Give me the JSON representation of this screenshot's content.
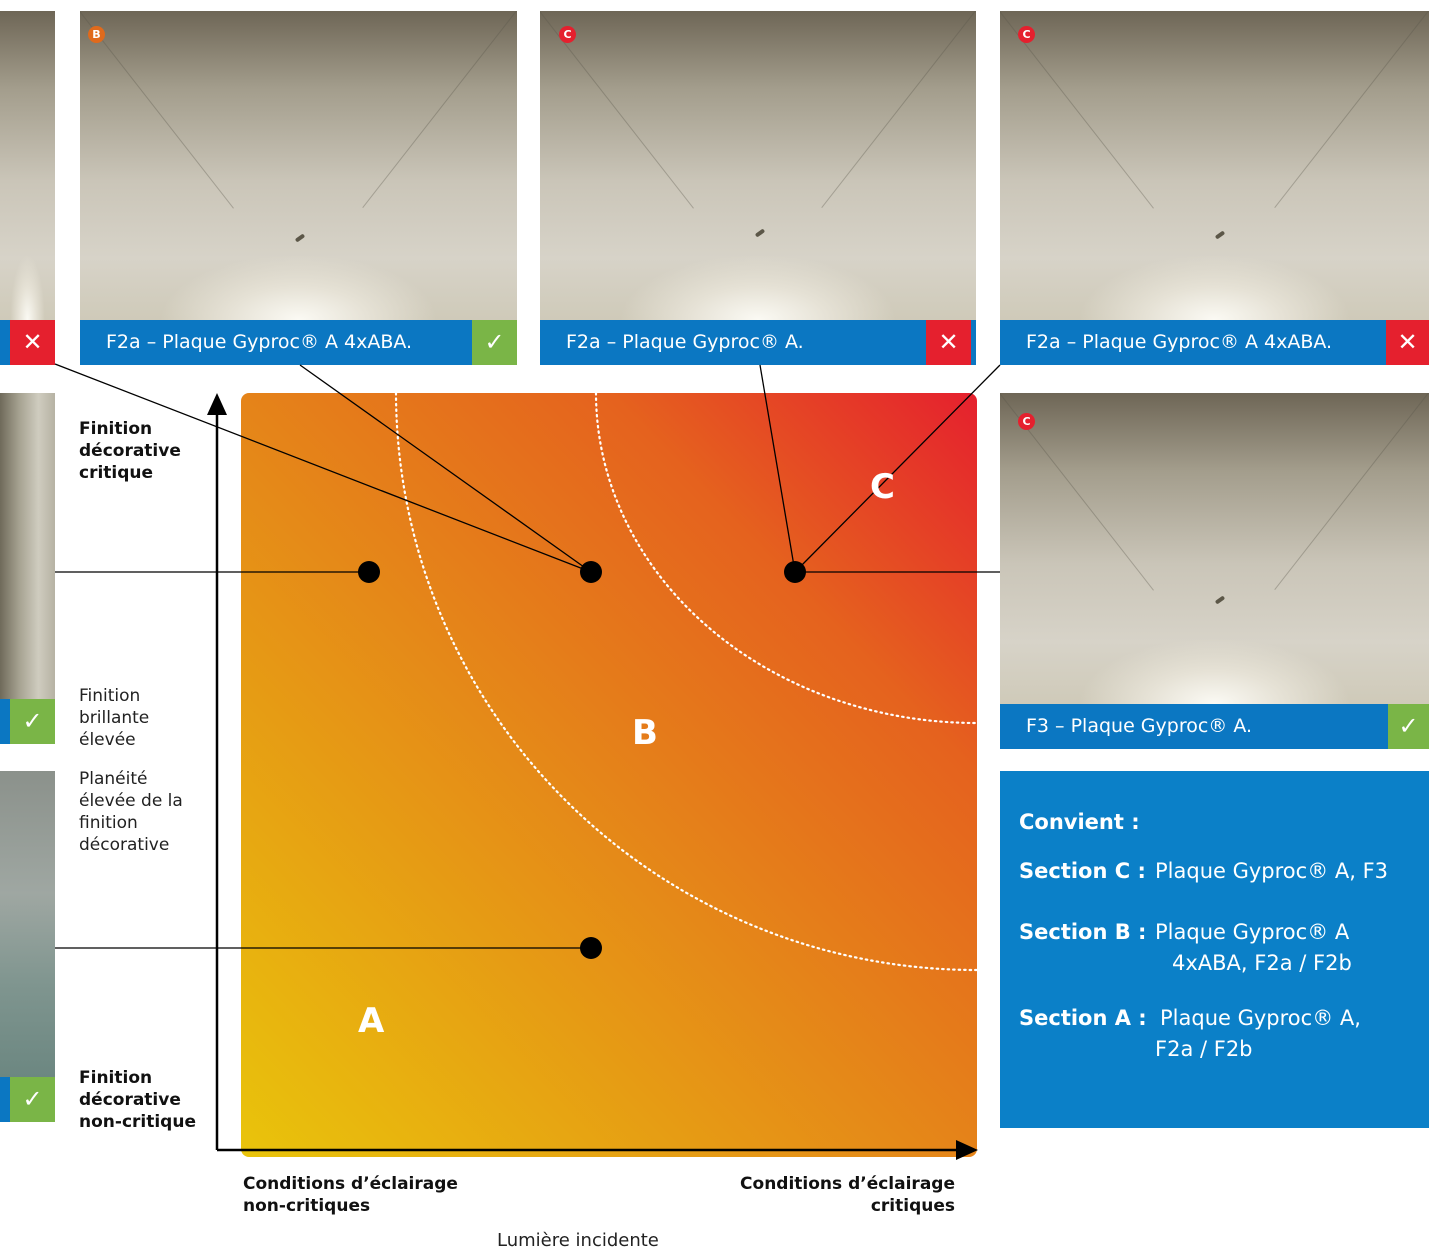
{
  "colors": {
    "caption_bg": "#0b77c2",
    "check_bg": "#7ab547",
    "cross_bg": "#e5202e",
    "panel_bg": "#0b80c8",
    "badge_b": "#e06a1c",
    "badge_c": "#e5202e",
    "gradient_low": "#e9c40b",
    "gradient_high": "#e5202e"
  },
  "photos": [
    {
      "badge": "B",
      "caption": "F2a – Plaque Gyproc® A 4xABA.",
      "result": "✓"
    },
    {
      "badge": "C",
      "caption": "F2a – Plaque Gyproc® A.",
      "result": "✕"
    },
    {
      "badge": "C",
      "caption": "F2a – Plaque Gyproc® A 4xABA.",
      "result": "✕"
    },
    {
      "badge": "C",
      "caption": "F3 – Plaque Gyproc® A.",
      "result": "✓"
    }
  ],
  "left_partial": [
    {
      "result": "✕"
    },
    {
      "result": "✓"
    },
    {
      "result": "✓"
    }
  ],
  "y_axis": {
    "top_label": [
      "Finition",
      "décorative",
      "critique"
    ],
    "bottom_label": [
      "Finition",
      "décorative",
      "non-critique"
    ],
    "note1": [
      "Finition",
      "brillante",
      "élevée"
    ],
    "note2": [
      "Planéité",
      "élevée de la",
      "finition",
      "décorative"
    ]
  },
  "x_axis": {
    "left_label": [
      "Conditions d’éclairage",
      "non-critiques"
    ],
    "right_label": [
      "Conditions d’éclairage",
      "critiques"
    ],
    "title": "Lumière incidente"
  },
  "zones": [
    "A",
    "B",
    "C"
  ],
  "panel": {
    "title": "Convient :",
    "rows": [
      {
        "key": "Section C :",
        "value": [
          "Plaque Gyproc® A, F3"
        ]
      },
      {
        "key": "Section B :",
        "value": [
          "Plaque Gyproc® A",
          "4xABA, F2a / F2b"
        ]
      },
      {
        "key": "Section A :",
        "value": [
          "Plaque Gyproc® A,",
          "F2a / F2b"
        ]
      }
    ]
  }
}
